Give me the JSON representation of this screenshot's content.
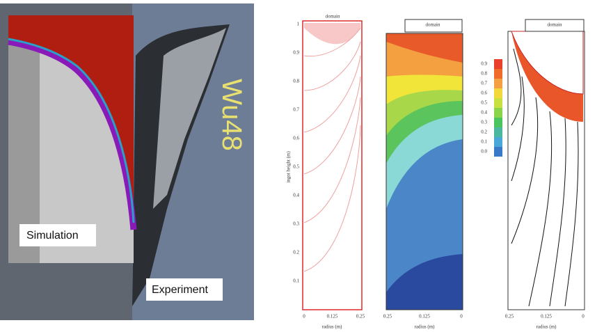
{
  "photo": {
    "simulation_label": "Simulation",
    "experiment_label": "Experiment",
    "sample_marking": "Wu48"
  },
  "plot_left": {
    "tag": "domain",
    "y_label": "ingot height (m)",
    "x_label": "radius (m)",
    "x_ticks": [
      "0",
      "0.125",
      "0.25"
    ],
    "y_ticks": [
      "0.1",
      "0.2",
      "0.3",
      "0.4",
      "0.5",
      "0.6",
      "0.7",
      "0.8",
      "0.9",
      "1"
    ]
  },
  "plot_middle": {
    "tag": "domain",
    "x_label": "radius (m)",
    "x_ticks": [
      "0.25",
      "0.125",
      "0"
    ]
  },
  "plot_right": {
    "tag": "domain",
    "x_label": "radius (m)",
    "x_ticks": [
      "0.25",
      "0.125",
      "0"
    ],
    "legend": [
      "0.9",
      "0.8",
      "0.7",
      "0.6",
      "0.5",
      "0.4",
      "0.3",
      "0.2",
      "0.1",
      "0.0"
    ]
  }
}
